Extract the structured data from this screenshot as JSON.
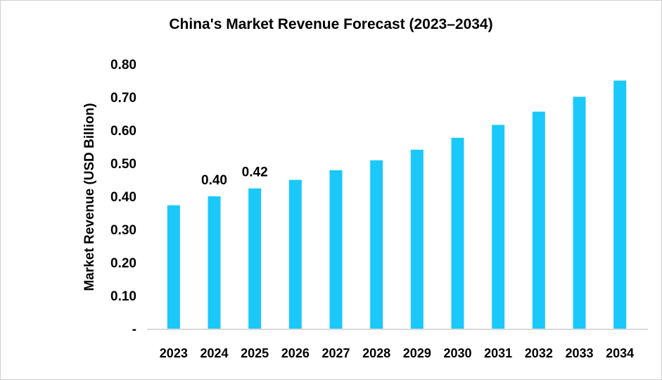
{
  "chart_data": {
    "type": "bar",
    "title": "China's Market Revenue Forecast (2023–2034)",
    "xlabel": "",
    "ylabel": "Market Revenue (USD Billion)",
    "categories": [
      "2023",
      "2024",
      "2025",
      "2026",
      "2027",
      "2028",
      "2029",
      "2030",
      "2031",
      "2032",
      "2033",
      "2034"
    ],
    "values": [
      0.373,
      0.4,
      0.424,
      0.45,
      0.479,
      0.509,
      0.541,
      0.577,
      0.616,
      0.656,
      0.701,
      0.75
    ],
    "data_labels": {
      "2024": "0.40",
      "2025": "0.42"
    },
    "ylim": [
      0,
      0.8
    ],
    "yticks": [
      "-",
      "0.10",
      "0.20",
      "0.30",
      "0.40",
      "0.50",
      "0.60",
      "0.70",
      "0.80"
    ],
    "grid": false,
    "legend": "none",
    "bar_color": "#1BC8FA"
  }
}
